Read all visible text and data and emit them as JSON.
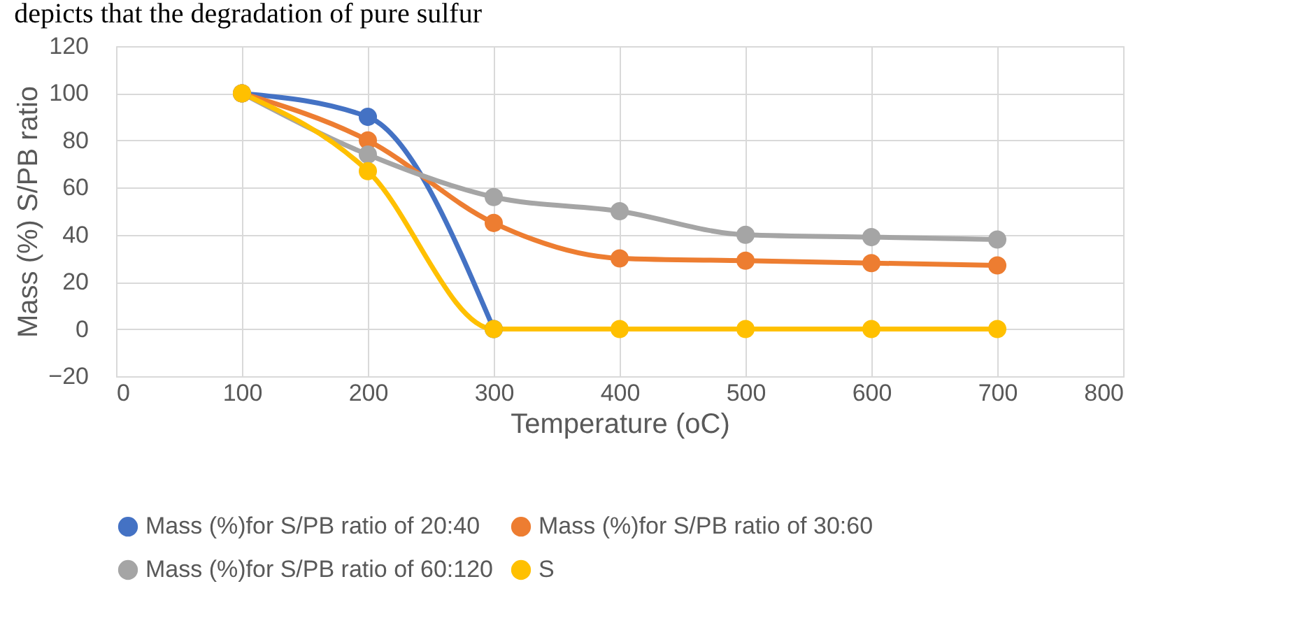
{
  "chart_data": {
    "type": "line",
    "annotations": [
      "depicts that the degradation of pure sulfur"
    ],
    "xlabel": "Temperature (oC)",
    "ylabel": "Mass (%)  S/PB ratio",
    "x": [
      100,
      200,
      300,
      400,
      500,
      600,
      700
    ],
    "xlim": [
      0,
      800
    ],
    "xticks": [
      0,
      100,
      200,
      300,
      400,
      500,
      600,
      700,
      800
    ],
    "ylim": [
      -20,
      120
    ],
    "yticks": [
      -20,
      0,
      20,
      40,
      60,
      80,
      100,
      120
    ],
    "grid": true,
    "legend": "bottom",
    "marker": "circle",
    "line_style": "solid",
    "series": [
      {
        "name": "Mass (%)for S/PB ratio of 20:40",
        "color": "#4472c4",
        "values": [
          100,
          90,
          0,
          null,
          null,
          null,
          null
        ]
      },
      {
        "name": "Mass (%)for S/PB ratio of 30:60",
        "color": "#ed7d31",
        "values": [
          100,
          80,
          45,
          30,
          29,
          28,
          27
        ]
      },
      {
        "name": "Mass (%)for S/PB ratio of 60:120",
        "color": "#a5a5a5",
        "values": [
          100,
          74,
          56,
          50,
          40,
          39,
          38
        ]
      },
      {
        "name": "S",
        "color": "#ffc000",
        "values": [
          100,
          67,
          0,
          0,
          0,
          0,
          0
        ]
      }
    ]
  }
}
